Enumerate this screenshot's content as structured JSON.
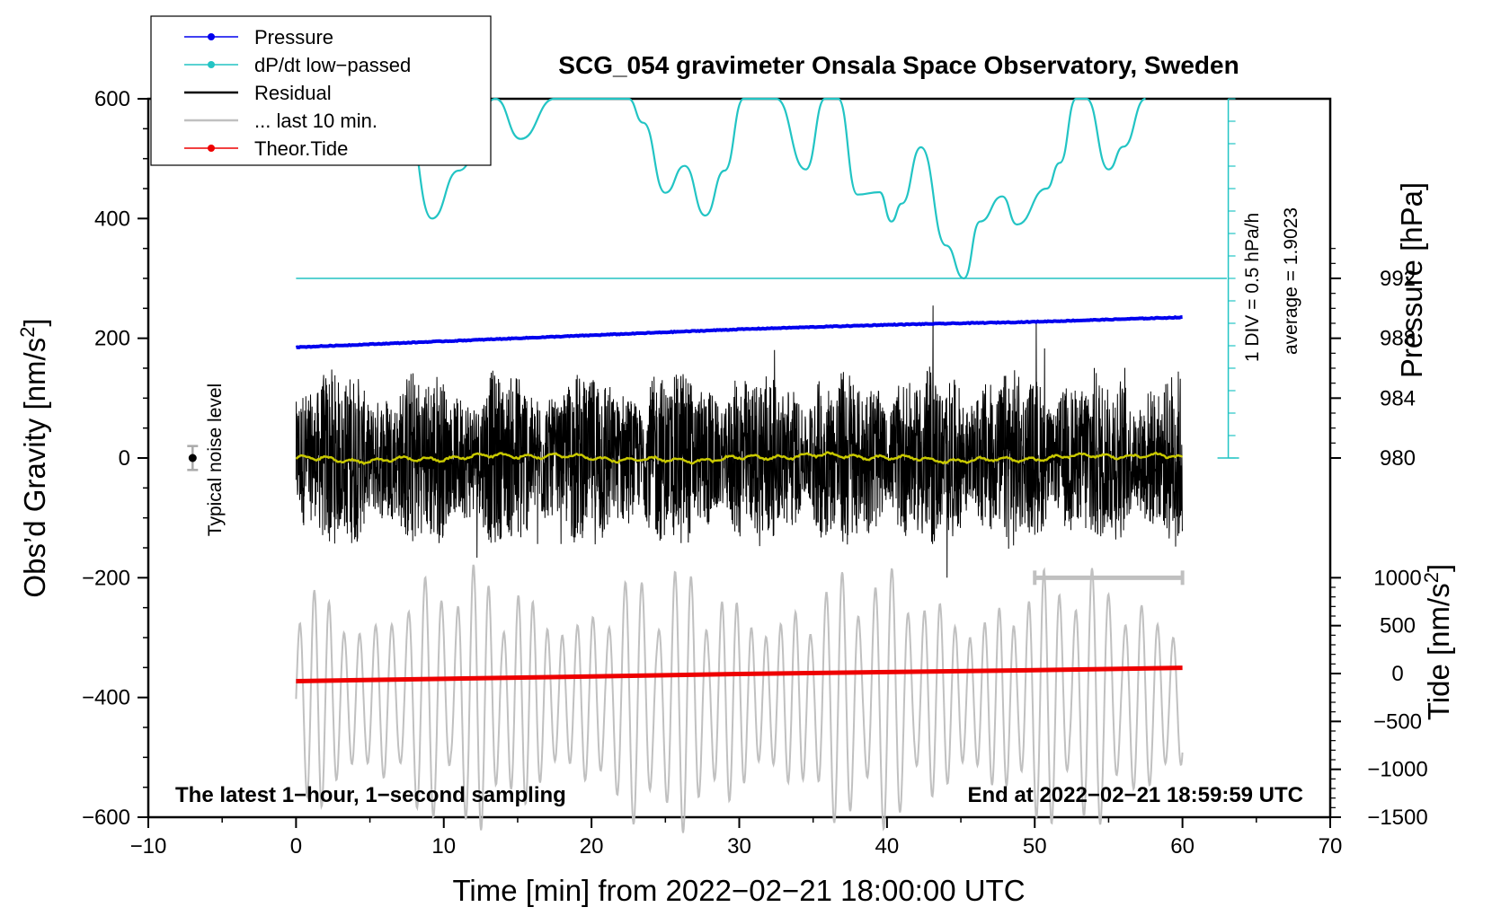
{
  "chart_data": {
    "type": "line",
    "title": "SCG_054 gravimeter Onsala Space Observatory, Sweden",
    "xlabel": "Time [min] from 2022−02−21 18:00:00 UTC",
    "ylabel_main": "Obs’d Gravity [nm/s",
    "ylabel_main_sup": "2",
    "ylabel_main_close": "]",
    "ylabel_pressure": "Pressure [hPa]",
    "ylabel_tide": "Tide [nm/s",
    "ylabel_tide_sup": "2",
    "ylabel_tide_close": "]",
    "xlim": [
      -10,
      70
    ],
    "ylim": [
      -600,
      600
    ],
    "x_ticks": [
      "−10",
      "0",
      "10",
      "20",
      "30",
      "40",
      "50",
      "60",
      "70"
    ],
    "y_ticks": [
      "600",
      "400",
      "200",
      "0",
      "−200",
      "−400",
      "−600"
    ],
    "pressure_ticks": [
      "992",
      "988",
      "984",
      "980"
    ],
    "tide_ticks": [
      "1000",
      "500",
      "0",
      "−500",
      "−1000",
      "−1500"
    ],
    "pressure_scale_note": "1 DIV = 0.5 hPa/h",
    "pressure_average_note": "average = 1.9023",
    "noise_label": "Typical noise level",
    "bottom_left_note": "The latest 1−hour, 1−second sampling",
    "bottom_right_note": "End at 2022−02−21 18:59:59 UTC",
    "legend": [
      {
        "label": "Pressure",
        "color": "#0000ee",
        "marker": true
      },
      {
        "label": "dP/dt low−passed",
        "color": "#22c4c4",
        "marker": true
      },
      {
        "label": "Residual",
        "color": "#000000",
        "marker": false
      },
      {
        "label": "... last 10 min.",
        "color": "#c0c0c0",
        "marker": false
      },
      {
        "label": "Theor.Tide",
        "color": "#ee0000",
        "marker": true
      }
    ],
    "series": [
      {
        "name": "Pressure",
        "axis": "pressure_hPa",
        "x": [
          0,
          10,
          20,
          30,
          40,
          50,
          60
        ],
        "values": [
          987.4,
          987.8,
          988.2,
          988.6,
          988.9,
          989.1,
          989.4
        ]
      },
      {
        "name": "Theor.Tide",
        "axis": "tide_nm/s2",
        "x": [
          0,
          10,
          20,
          30,
          40,
          50,
          60
        ],
        "values": [
          -80,
          -55,
          -30,
          -5,
          15,
          35,
          60
        ]
      },
      {
        "name": "dP/dt low-passed",
        "axis": "gravity_nm/s2",
        "x": [
          7.3,
          9.2,
          11,
          13.5,
          15.2,
          17.5,
          22.5,
          23.5,
          25,
          26.3,
          27.7,
          29,
          30.3,
          32.5,
          34.5,
          35.8,
          36.7,
          38,
          39.5,
          40.3,
          41,
          42.3,
          44,
          45.2,
          46.3,
          47.8,
          48.8,
          50.8,
          51.7,
          52.8,
          53.5,
          55,
          56,
          57.5
        ],
        "values": [
          600,
          400,
          480,
          600,
          533,
          600,
          600,
          560,
          443,
          488,
          405,
          480,
          600,
          600,
          482,
          600,
          600,
          440,
          444,
          395,
          425,
          519,
          355,
          300,
          395,
          437,
          390,
          450,
          493,
          600,
          600,
          482,
          520,
          600
        ]
      },
      {
        "name": "Residual",
        "axis": "gravity_nm/s2",
        "x_range": [
          0,
          60
        ],
        "amplitude_range": [
          -250,
          270
        ]
      },
      {
        "name": "Residual smoothed",
        "axis": "gravity_nm/s2",
        "x_range": [
          0,
          60
        ],
        "values_range": [
          -12,
          8
        ]
      },
      {
        "name": "... last 10 min.",
        "axis": "gravity_nm/s2",
        "x_range": [
          0,
          60
        ],
        "amplitude_range": [
          -630,
          -175
        ]
      }
    ],
    "noise_bar": {
      "x": -7,
      "y": 0,
      "err": 20
    },
    "last10_marker": {
      "x": [
        50,
        60
      ],
      "y": -200
    },
    "pressure_axis": {
      "range": [
        980,
        992
      ],
      "y_at_gravity": [
        400,
        0
      ]
    },
    "tide_axis": {
      "range": [
        -1500,
        1000
      ]
    }
  }
}
